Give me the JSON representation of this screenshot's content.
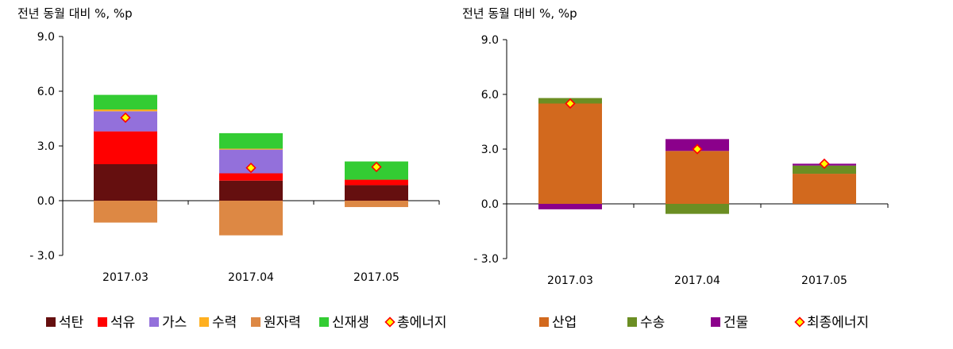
{
  "chart_data": [
    {
      "type": "bar",
      "stacked": true,
      "ylabel": "전년 동월 대비 %, %p",
      "ylim": [
        -3.0,
        9.0
      ],
      "yticks": [
        "- 3.0",
        "0.0",
        "3.0",
        "6.0",
        "9.0"
      ],
      "ytick_values": [
        -3,
        0,
        3,
        6,
        9
      ],
      "categories": [
        "2017.03",
        "2017.04",
        "2017.05"
      ],
      "series": [
        {
          "name": "석탄",
          "color": "#650f0f",
          "values": [
            2.0,
            1.1,
            0.85
          ]
        },
        {
          "name": "석유",
          "color": "#ff0000",
          "values": [
            1.8,
            0.4,
            0.3
          ]
        },
        {
          "name": "가스",
          "color": "#9370db",
          "values": [
            1.1,
            1.3,
            0.0
          ]
        },
        {
          "name": "수력",
          "color": "#ffb020",
          "values": [
            0.1,
            0.05,
            0.0
          ]
        },
        {
          "name": "원자력",
          "color": "#dd8844",
          "values": [
            -1.2,
            -1.9,
            -0.35
          ]
        },
        {
          "name": "신재생",
          "color": "#33cc33",
          "values": [
            0.8,
            0.85,
            1.0
          ]
        }
      ],
      "markers": {
        "name": "총에너지",
        "values": [
          4.55,
          1.8,
          1.85
        ]
      },
      "legend_position": "bottom"
    },
    {
      "type": "bar",
      "stacked": true,
      "ylabel": "전년 동월 대비 %, %p",
      "ylim": [
        -3.0,
        9.0
      ],
      "yticks": [
        "- 3.0",
        "0.0",
        "3.0",
        "6.0",
        "9.0"
      ],
      "ytick_values": [
        -3,
        0,
        3,
        6,
        9
      ],
      "categories": [
        "2017.03",
        "2017.04",
        "2017.05"
      ],
      "series": [
        {
          "name": "산업",
          "color": "#d2691e",
          "values": [
            5.5,
            2.9,
            1.65
          ]
        },
        {
          "name": "수송",
          "color": "#6b8e23",
          "values": [
            0.3,
            -0.55,
            0.45
          ]
        },
        {
          "name": "건물",
          "color": "#8b008b",
          "values": [
            -0.3,
            0.65,
            0.1
          ]
        }
      ],
      "markers": {
        "name": "최종에너지",
        "values": [
          5.5,
          3.0,
          2.2
        ]
      },
      "legend_position": "bottom"
    }
  ],
  "marker_style": {
    "fill": "#ffff00",
    "stroke": "#ff0000"
  }
}
